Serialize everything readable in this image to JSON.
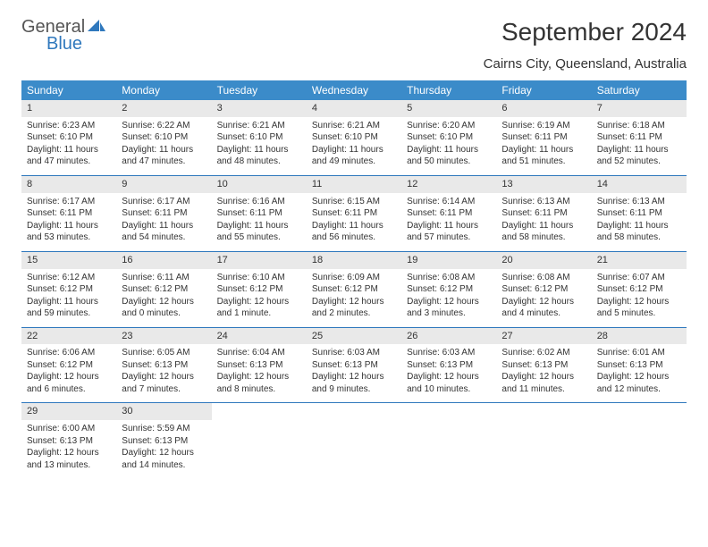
{
  "brand": {
    "part1": "General",
    "part2": "Blue"
  },
  "title": "September 2024",
  "subtitle": "Cairns City, Queensland, Australia",
  "colors": {
    "header_bg": "#3b8bc9",
    "header_text": "#ffffff",
    "daynum_bg": "#e9e9e9",
    "row_border": "#2f78bd",
    "logo_blue": "#2f78bd",
    "body_text": "#333333"
  },
  "days_of_week": [
    "Sunday",
    "Monday",
    "Tuesday",
    "Wednesday",
    "Thursday",
    "Friday",
    "Saturday"
  ],
  "weeks": [
    [
      {
        "n": "1",
        "sr": "Sunrise: 6:23 AM",
        "ss": "Sunset: 6:10 PM",
        "dl": "Daylight: 11 hours and 47 minutes."
      },
      {
        "n": "2",
        "sr": "Sunrise: 6:22 AM",
        "ss": "Sunset: 6:10 PM",
        "dl": "Daylight: 11 hours and 47 minutes."
      },
      {
        "n": "3",
        "sr": "Sunrise: 6:21 AM",
        "ss": "Sunset: 6:10 PM",
        "dl": "Daylight: 11 hours and 48 minutes."
      },
      {
        "n": "4",
        "sr": "Sunrise: 6:21 AM",
        "ss": "Sunset: 6:10 PM",
        "dl": "Daylight: 11 hours and 49 minutes."
      },
      {
        "n": "5",
        "sr": "Sunrise: 6:20 AM",
        "ss": "Sunset: 6:10 PM",
        "dl": "Daylight: 11 hours and 50 minutes."
      },
      {
        "n": "6",
        "sr": "Sunrise: 6:19 AM",
        "ss": "Sunset: 6:11 PM",
        "dl": "Daylight: 11 hours and 51 minutes."
      },
      {
        "n": "7",
        "sr": "Sunrise: 6:18 AM",
        "ss": "Sunset: 6:11 PM",
        "dl": "Daylight: 11 hours and 52 minutes."
      }
    ],
    [
      {
        "n": "8",
        "sr": "Sunrise: 6:17 AM",
        "ss": "Sunset: 6:11 PM",
        "dl": "Daylight: 11 hours and 53 minutes."
      },
      {
        "n": "9",
        "sr": "Sunrise: 6:17 AM",
        "ss": "Sunset: 6:11 PM",
        "dl": "Daylight: 11 hours and 54 minutes."
      },
      {
        "n": "10",
        "sr": "Sunrise: 6:16 AM",
        "ss": "Sunset: 6:11 PM",
        "dl": "Daylight: 11 hours and 55 minutes."
      },
      {
        "n": "11",
        "sr": "Sunrise: 6:15 AM",
        "ss": "Sunset: 6:11 PM",
        "dl": "Daylight: 11 hours and 56 minutes."
      },
      {
        "n": "12",
        "sr": "Sunrise: 6:14 AM",
        "ss": "Sunset: 6:11 PM",
        "dl": "Daylight: 11 hours and 57 minutes."
      },
      {
        "n": "13",
        "sr": "Sunrise: 6:13 AM",
        "ss": "Sunset: 6:11 PM",
        "dl": "Daylight: 11 hours and 58 minutes."
      },
      {
        "n": "14",
        "sr": "Sunrise: 6:13 AM",
        "ss": "Sunset: 6:11 PM",
        "dl": "Daylight: 11 hours and 58 minutes."
      }
    ],
    [
      {
        "n": "15",
        "sr": "Sunrise: 6:12 AM",
        "ss": "Sunset: 6:12 PM",
        "dl": "Daylight: 11 hours and 59 minutes."
      },
      {
        "n": "16",
        "sr": "Sunrise: 6:11 AM",
        "ss": "Sunset: 6:12 PM",
        "dl": "Daylight: 12 hours and 0 minutes."
      },
      {
        "n": "17",
        "sr": "Sunrise: 6:10 AM",
        "ss": "Sunset: 6:12 PM",
        "dl": "Daylight: 12 hours and 1 minute."
      },
      {
        "n": "18",
        "sr": "Sunrise: 6:09 AM",
        "ss": "Sunset: 6:12 PM",
        "dl": "Daylight: 12 hours and 2 minutes."
      },
      {
        "n": "19",
        "sr": "Sunrise: 6:08 AM",
        "ss": "Sunset: 6:12 PM",
        "dl": "Daylight: 12 hours and 3 minutes."
      },
      {
        "n": "20",
        "sr": "Sunrise: 6:08 AM",
        "ss": "Sunset: 6:12 PM",
        "dl": "Daylight: 12 hours and 4 minutes."
      },
      {
        "n": "21",
        "sr": "Sunrise: 6:07 AM",
        "ss": "Sunset: 6:12 PM",
        "dl": "Daylight: 12 hours and 5 minutes."
      }
    ],
    [
      {
        "n": "22",
        "sr": "Sunrise: 6:06 AM",
        "ss": "Sunset: 6:12 PM",
        "dl": "Daylight: 12 hours and 6 minutes."
      },
      {
        "n": "23",
        "sr": "Sunrise: 6:05 AM",
        "ss": "Sunset: 6:13 PM",
        "dl": "Daylight: 12 hours and 7 minutes."
      },
      {
        "n": "24",
        "sr": "Sunrise: 6:04 AM",
        "ss": "Sunset: 6:13 PM",
        "dl": "Daylight: 12 hours and 8 minutes."
      },
      {
        "n": "25",
        "sr": "Sunrise: 6:03 AM",
        "ss": "Sunset: 6:13 PM",
        "dl": "Daylight: 12 hours and 9 minutes."
      },
      {
        "n": "26",
        "sr": "Sunrise: 6:03 AM",
        "ss": "Sunset: 6:13 PM",
        "dl": "Daylight: 12 hours and 10 minutes."
      },
      {
        "n": "27",
        "sr": "Sunrise: 6:02 AM",
        "ss": "Sunset: 6:13 PM",
        "dl": "Daylight: 12 hours and 11 minutes."
      },
      {
        "n": "28",
        "sr": "Sunrise: 6:01 AM",
        "ss": "Sunset: 6:13 PM",
        "dl": "Daylight: 12 hours and 12 minutes."
      }
    ],
    [
      {
        "n": "29",
        "sr": "Sunrise: 6:00 AM",
        "ss": "Sunset: 6:13 PM",
        "dl": "Daylight: 12 hours and 13 minutes."
      },
      {
        "n": "30",
        "sr": "Sunrise: 5:59 AM",
        "ss": "Sunset: 6:13 PM",
        "dl": "Daylight: 12 hours and 14 minutes."
      },
      null,
      null,
      null,
      null,
      null
    ]
  ]
}
